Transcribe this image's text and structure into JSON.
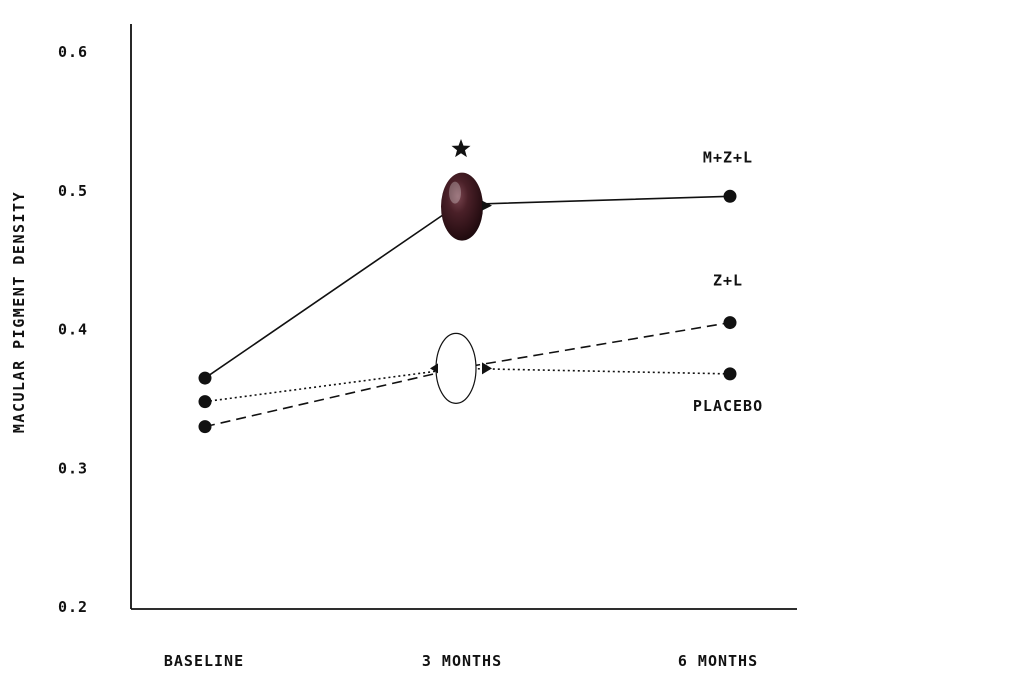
{
  "chart_data": {
    "type": "line",
    "title": "",
    "xlabel": "",
    "ylabel": "MACULAR PIGMENT DENSITY",
    "ylim": [
      0.2,
      0.6
    ],
    "yticks": [
      "0.2",
      "0.3",
      "0.4",
      "0.5",
      "0.6"
    ],
    "categories": [
      "BASELINE",
      "3 MONTHS",
      "6 MONTHS"
    ],
    "grid": false,
    "series": [
      {
        "name": "M+Z+L",
        "values": [
          0.365,
          0.49,
          0.496
        ],
        "line_style": "solid",
        "color": "#111111"
      },
      {
        "name": "Z+L",
        "values": [
          0.33,
          0.372,
          0.405
        ],
        "line_style": "dashed",
        "color": "#111111"
      },
      {
        "name": "PLACEBO",
        "values": [
          0.348,
          0.372,
          0.368
        ],
        "line_style": "dotted",
        "color": "#111111"
      }
    ],
    "annotations": [
      {
        "category": "3 MONTHS",
        "marker": "star-icon"
      },
      {
        "category": "3 MONTHS",
        "marker": "dark-capsule-icon",
        "color": "#3a1a20"
      },
      {
        "category": "3 MONTHS",
        "marker": "white-capsule-icon",
        "color": "#ffffff"
      }
    ]
  }
}
